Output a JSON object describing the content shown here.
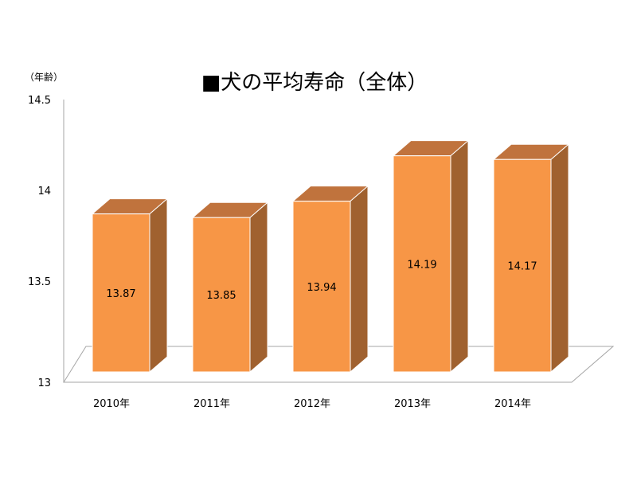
{
  "chart_data": {
    "type": "bar",
    "title": "■犬の平均寿命（全体）",
    "ylabel": "（年齢）",
    "xlabel": "",
    "categories": [
      "2010年",
      "2011年",
      "2012年",
      "2013年",
      "2014年"
    ],
    "values": [
      13.87,
      13.85,
      13.94,
      14.19,
      14.17
    ],
    "data_labels": [
      "13.87",
      "13.85",
      "13.94",
      "14.19",
      "14.17"
    ],
    "ylim": [
      13,
      14.5
    ],
    "yticks": [
      13,
      13.5,
      14,
      14.5
    ],
    "ytick_labels": [
      "13",
      "13.5",
      "14",
      "14.5"
    ],
    "grid": false,
    "legend": "none",
    "style": "3d-column",
    "colors": {
      "bar_front": "#F79646",
      "bar_top": "#C0733D",
      "bar_side": "#A0612F",
      "bar_edge": "#FFFFFF",
      "axis": "#A6A6A6"
    }
  }
}
